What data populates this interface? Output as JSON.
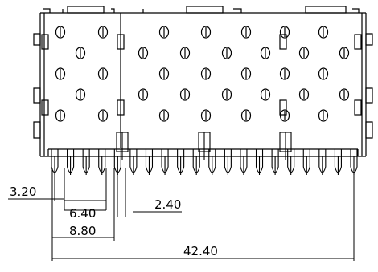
{
  "drawing": {
    "dimensions": {
      "d1": "3.20",
      "d2": "6.40",
      "d3": "2.40",
      "d4": "8.80",
      "d5": "42.40"
    },
    "counts": {
      "hole_columns": 7,
      "hole_rows": 5,
      "pin_count": 20
    }
  }
}
